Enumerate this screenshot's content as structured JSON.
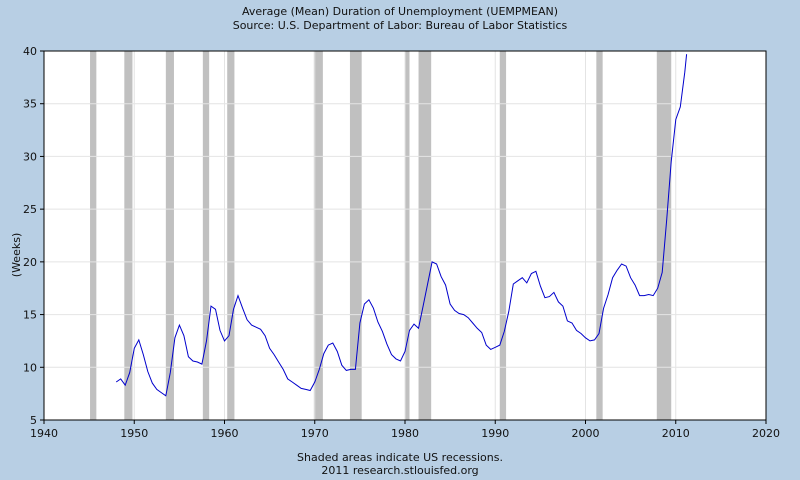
{
  "chart_data": {
    "type": "line",
    "title": "Average (Mean) Duration of Unemployment (UEMPMEAN)",
    "subtitle": "Source: U.S. Department of Labor: Bureau of Labor Statistics",
    "ylabel": "(Weeks)",
    "xlabel": "",
    "xlim": [
      1940,
      2020
    ],
    "ylim": [
      5,
      40
    ],
    "x_ticks": [
      "1940",
      "1950",
      "1960",
      "1970",
      "1980",
      "1990",
      "2000",
      "2010",
      "2020"
    ],
    "y_ticks": [
      "5",
      "10",
      "15",
      "20",
      "25",
      "30",
      "35",
      "40"
    ],
    "grid": true,
    "line_color": "#0000cc",
    "recession_color": "#c0c0c0",
    "recessions": [
      [
        1945.1,
        1945.8
      ],
      [
        1948.9,
        1949.8
      ],
      [
        1953.5,
        1954.4
      ],
      [
        1957.6,
        1958.3
      ],
      [
        1960.3,
        1961.1
      ],
      [
        1969.9,
        1970.9
      ],
      [
        1973.9,
        1975.2
      ],
      [
        1980.0,
        1980.5
      ],
      [
        1981.5,
        1982.9
      ],
      [
        1990.5,
        1991.2
      ],
      [
        2001.2,
        2001.9
      ],
      [
        2007.9,
        2009.5
      ]
    ],
    "series": [
      {
        "x": [
          1948.0,
          1948.5,
          1949.0,
          1949.5,
          1950.0,
          1950.5,
          1951.0,
          1951.5,
          1952.0,
          1952.5,
          1953.0,
          1953.5,
          1954.0,
          1954.5,
          1955.0,
          1955.5,
          1956.0,
          1956.5,
          1957.0,
          1957.5,
          1958.0,
          1958.5,
          1959.0,
          1959.5,
          1960.0,
          1960.5,
          1961.0,
          1961.5,
          1962.0,
          1962.5,
          1963.0,
          1963.5,
          1964.0,
          1964.5,
          1965.0,
          1965.5,
          1966.0,
          1966.5,
          1967.0,
          1967.5,
          1968.0,
          1968.5,
          1969.0,
          1969.5,
          1970.0,
          1970.5,
          1971.0,
          1971.5,
          1972.0,
          1972.5,
          1973.0,
          1973.5,
          1974.0,
          1974.5,
          1975.0,
          1975.5,
          1976.0,
          1976.5,
          1977.0,
          1977.5,
          1978.0,
          1978.5,
          1979.0,
          1979.5,
          1980.0,
          1980.5,
          1981.0,
          1981.5,
          1982.0,
          1982.5,
          1983.0,
          1983.5,
          1984.0,
          1984.5,
          1985.0,
          1985.5,
          1986.0,
          1986.5,
          1987.0,
          1987.5,
          1988.0,
          1988.5,
          1989.0,
          1989.5,
          1990.0,
          1990.5,
          1991.0,
          1991.5,
          1992.0,
          1992.5,
          1993.0,
          1993.5,
          1994.0,
          1994.5,
          1995.0,
          1995.5,
          1996.0,
          1996.5,
          1997.0,
          1997.5,
          1998.0,
          1998.5,
          1999.0,
          1999.5,
          2000.0,
          2000.5,
          2001.0,
          2001.5,
          2002.0,
          2002.5,
          2003.0,
          2003.5,
          2004.0,
          2004.5,
          2005.0,
          2005.5,
          2006.0,
          2006.5,
          2007.0,
          2007.5,
          2008.0,
          2008.5,
          2009.0,
          2009.5,
          2010.0,
          2010.5,
          2011.0,
          2011.2
        ],
        "y": [
          8.6,
          8.9,
          8.3,
          9.5,
          11.8,
          12.6,
          11.2,
          9.6,
          8.5,
          7.9,
          7.6,
          7.3,
          9.5,
          12.8,
          14.0,
          13.0,
          11.0,
          10.6,
          10.5,
          10.3,
          12.5,
          15.8,
          15.5,
          13.5,
          12.5,
          13.0,
          15.5,
          16.8,
          15.6,
          14.5,
          14.0,
          13.8,
          13.6,
          13.0,
          11.8,
          11.2,
          10.5,
          9.8,
          8.9,
          8.6,
          8.3,
          8.0,
          7.9,
          7.8,
          8.6,
          9.8,
          11.3,
          12.1,
          12.3,
          11.5,
          10.2,
          9.7,
          9.8,
          9.8,
          14.2,
          16.0,
          16.4,
          15.6,
          14.3,
          13.4,
          12.2,
          11.2,
          10.8,
          10.6,
          11.5,
          13.5,
          14.1,
          13.7,
          15.8,
          17.9,
          20.0,
          19.8,
          18.6,
          17.8,
          16.0,
          15.4,
          15.1,
          15.0,
          14.7,
          14.2,
          13.7,
          13.3,
          12.1,
          11.7,
          11.9,
          12.1,
          13.4,
          15.3,
          17.9,
          18.2,
          18.5,
          18.0,
          18.9,
          19.1,
          17.7,
          16.6,
          16.7,
          17.1,
          16.2,
          15.8,
          14.4,
          14.2,
          13.5,
          13.2,
          12.8,
          12.5,
          12.6,
          13.2,
          15.6,
          16.9,
          18.5,
          19.2,
          19.8,
          19.6,
          18.5,
          17.8,
          16.8,
          16.8,
          16.9,
          16.8,
          17.5,
          19.0,
          24.0,
          29.5,
          33.5,
          34.7,
          38.0,
          39.7
        ]
      }
    ],
    "footer_lines": [
      "Shaded areas indicate US recessions.",
      "2011 research.stlouisfed.org"
    ]
  }
}
